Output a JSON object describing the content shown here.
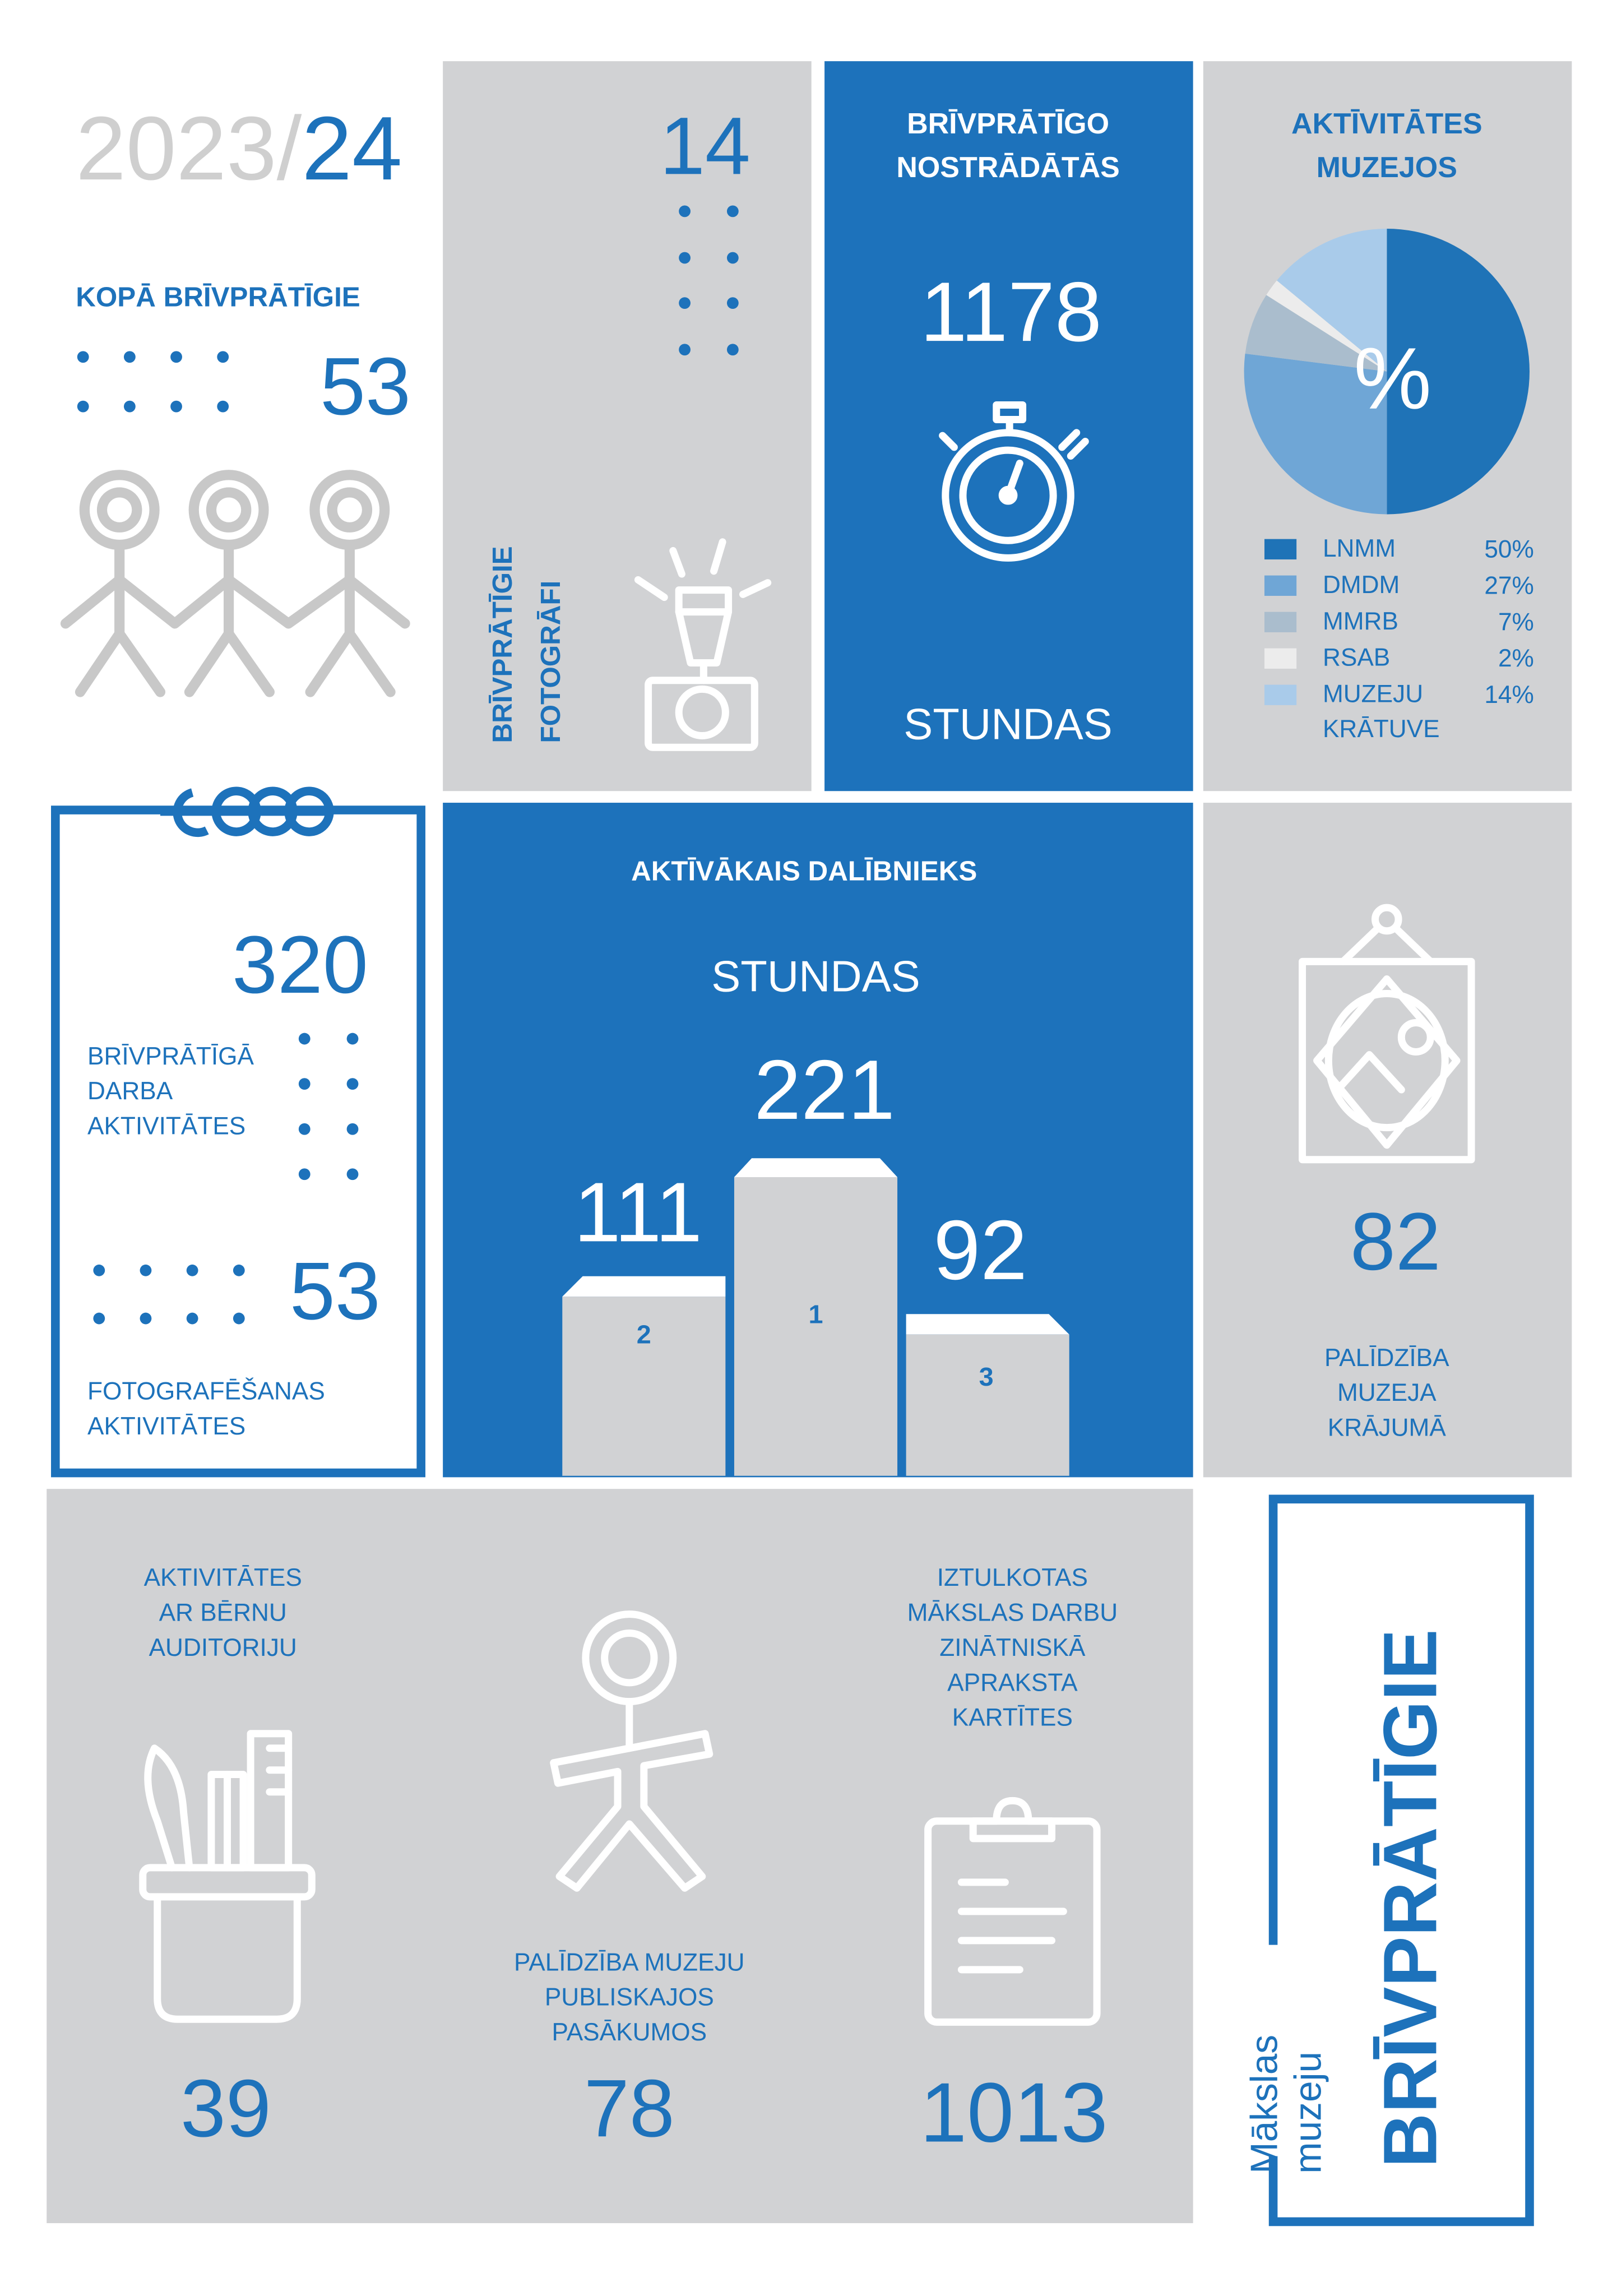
{
  "header": {
    "year_a": "2023/",
    "year_b": "24"
  },
  "volunteers": {
    "title": "KOPĀ BRĪVPRĀTĪGIE",
    "count": 53
  },
  "photographers": {
    "count": 14,
    "label_lines": [
      "BRĪVPRĀTĪGIE",
      "FOTOGRĀFI"
    ]
  },
  "hours": {
    "title_lines": [
      "BRĪVPRĀTĪGO",
      "NOSTRĀDĀTĀS"
    ],
    "value": 1178,
    "unit": "STUNDAS"
  },
  "activities": {
    "title_lines": [
      "AKTĪVITĀTES",
      "MUZEJOS"
    ],
    "symbol": "%",
    "pie": {
      "type": "pie",
      "labels": [
        "LNMM",
        "DMDM",
        "MMRB",
        "RSAB",
        "MUZEJU KRĀTUVE"
      ],
      "values": [
        50,
        27,
        7,
        2,
        14
      ],
      "value_labels": [
        "50%",
        "27%",
        "7%",
        "2%",
        "14%"
      ],
      "colors": [
        "#1f73b7",
        "#6fa6d6",
        "#aabdcd",
        "#ececec",
        "#a9cbea"
      ]
    }
  },
  "calendar": {
    "work_count": 320,
    "work_lines": [
      "BRĪVPRĀTĪGĀ",
      "DARBA",
      "AKTIVITĀTES"
    ],
    "photo_count": 53,
    "photo_lines": [
      "FOTOGRAFĒŠANAS",
      "AKTIVITĀTES"
    ]
  },
  "top": {
    "title": "AKTĪVĀKAIS DALĪBNIEKS",
    "unit": "STUNDAS",
    "podium": [
      {
        "place": 2,
        "hours": 111
      },
      {
        "place": 1,
        "hours": 221
      },
      {
        "place": 3,
        "hours": 92
      }
    ]
  },
  "collection": {
    "count": 82,
    "lines": [
      "PALĪDZĪBA",
      "MUZEJA",
      "KRĀJUMĀ"
    ]
  },
  "bottom": {
    "children": {
      "lines": [
        "AKTIVITĀTES",
        "AR BĒRNU",
        "AUDITORIJU"
      ],
      "count": 39
    },
    "events": {
      "lines": [
        "PALĪDZĪBA MUZEJU",
        "PUBLISKAJOS",
        "PASĀKUMOS"
      ],
      "count": 78
    },
    "cards": {
      "lines": [
        "IZTULKOTAS",
        "MĀKSLAS DARBU",
        "ZINĀTNISKĀ",
        "APRAKSTA",
        "KARTĪTES"
      ],
      "count": 1013
    }
  },
  "brand": {
    "lines": [
      "Mākslas",
      "muzeju"
    ],
    "title": "BRĪVPRĀTĪGIE"
  }
}
